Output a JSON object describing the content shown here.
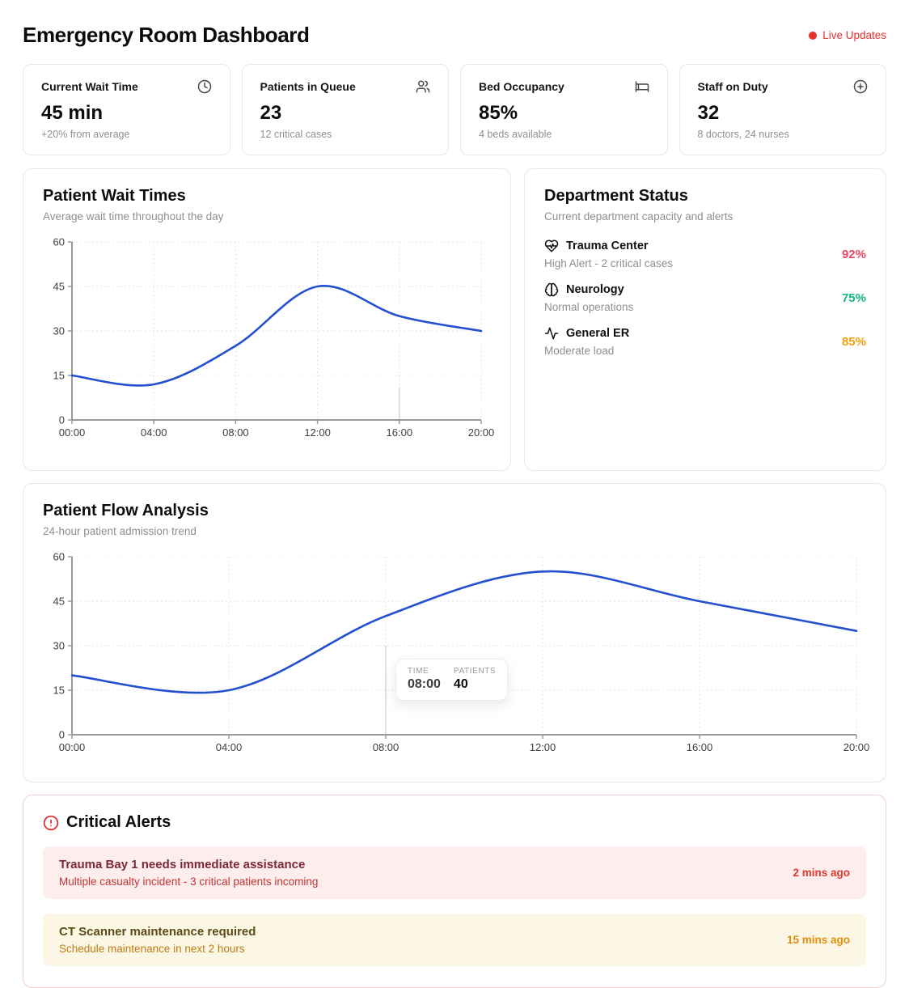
{
  "header": {
    "title": "Emergency Room Dashboard",
    "live_badge": "Live Updates",
    "accent_red": "#e8312e"
  },
  "stats": [
    {
      "label": "Current Wait Time",
      "icon": "clock-icon",
      "value": "45 min",
      "sub": "+20% from average"
    },
    {
      "label": "Patients in Queue",
      "icon": "users-icon",
      "value": "23",
      "sub": "12 critical cases"
    },
    {
      "label": "Bed Occupancy",
      "icon": "bed-icon",
      "value": "85%",
      "sub": "4 beds available"
    },
    {
      "label": "Staff on Duty",
      "icon": "plus-circle-icon",
      "value": "32",
      "sub": "8 doctors, 24 nurses"
    }
  ],
  "wait_panel": {
    "title": "Patient Wait Times",
    "subtitle": "Average wait time throughout the day"
  },
  "department_panel": {
    "title": "Department Status",
    "subtitle": "Current department capacity and alerts",
    "items": [
      {
        "name": "Trauma Center",
        "icon": "heart-pulse-icon",
        "status": "High Alert - 2 critical cases",
        "pct": "92%",
        "color": "#ef4565"
      },
      {
        "name": "Neurology",
        "icon": "brain-icon",
        "status": "Normal operations",
        "pct": "75%",
        "color": "#10b981"
      },
      {
        "name": "General ER",
        "icon": "activity-icon",
        "status": "Moderate load",
        "pct": "85%",
        "color": "#f59e0b"
      }
    ]
  },
  "flow_panel": {
    "title": "Patient Flow Analysis",
    "subtitle": "24-hour patient admission trend",
    "tooltip": {
      "time_label": "TIME",
      "time_value": "08:00",
      "patients_label": "PATIENTS",
      "patients_value": "40"
    }
  },
  "alerts_panel": {
    "title": "Critical Alerts",
    "items": [
      {
        "title": "Trauma Bay 1 needs immediate assistance",
        "detail": "Multiple casualty incident - 3 critical patients incoming",
        "time": "2 mins ago",
        "severity": "critical"
      },
      {
        "title": "CT Scanner maintenance required",
        "detail": "Schedule maintenance in next 2 hours",
        "time": "15 mins ago",
        "severity": "warning"
      }
    ]
  },
  "chart_data": [
    {
      "type": "line",
      "title": "Patient Wait Times",
      "x": [
        "00:00",
        "04:00",
        "08:00",
        "12:00",
        "16:00",
        "20:00"
      ],
      "values": [
        15,
        12,
        25,
        45,
        35,
        30
      ],
      "ylim": [
        0,
        60
      ],
      "yticks": [
        0,
        15,
        30,
        45,
        60
      ],
      "grid": true,
      "legend": "none",
      "line_color": "#2350cf",
      "hover": {
        "x_index": 4,
        "line_top_value": 11
      }
    },
    {
      "type": "line",
      "title": "Patient Flow Analysis",
      "x": [
        "00:00",
        "04:00",
        "08:00",
        "12:00",
        "16:00",
        "20:00"
      ],
      "values": [
        20,
        15,
        40,
        55,
        45,
        35
      ],
      "ylim": [
        0,
        60
      ],
      "yticks": [
        0,
        15,
        30,
        45,
        60
      ],
      "grid": true,
      "legend": "none",
      "line_color": "#2350cf",
      "hover": {
        "x_index": 2,
        "line_top_value": 30,
        "tooltip": {
          "time": "08:00",
          "patients": 40
        }
      }
    }
  ]
}
